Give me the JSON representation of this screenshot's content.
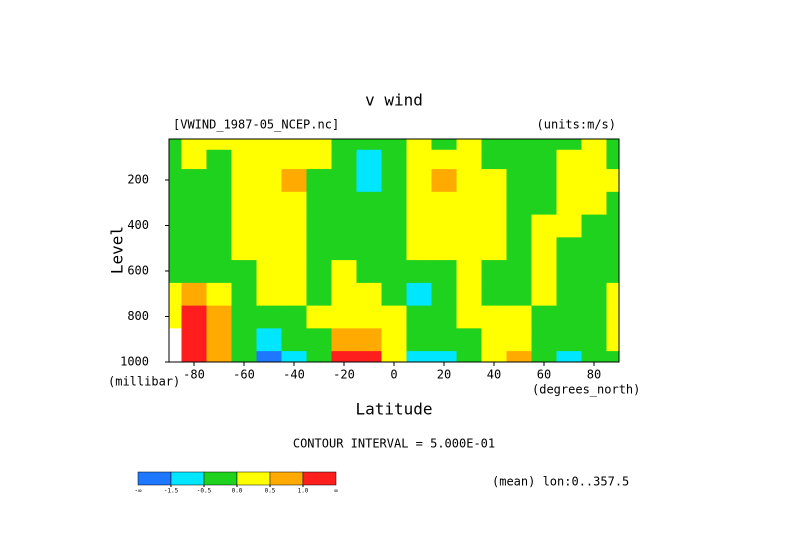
{
  "chart_data": {
    "type": "contour",
    "title": "v wind",
    "source_label": "[VWIND_1987-05_NCEP.nc]",
    "units_label": "(units:m/s)",
    "ylabel": "Level",
    "ylabel_units": "(millibar)",
    "xlabel": "Latitude",
    "xlabel_units": "(degrees_north)",
    "contour_interval": "CONTOUR INTERVAL = 5.000E-01",
    "mean_label": "(mean) lon:0..357.5",
    "x": [
      -90,
      -80,
      -70,
      -60,
      -50,
      -40,
      -30,
      -20,
      -10,
      0,
      10,
      20,
      30,
      40,
      50,
      60,
      70,
      80,
      90
    ],
    "levels": [
      1000,
      900,
      800,
      700,
      600,
      500,
      400,
      300,
      200,
      100,
      30
    ],
    "values": [
      [
        null,
        1.5,
        0.7,
        -0.2,
        -1.6,
        -1.0,
        -0.2,
        1.5,
        1.2,
        0.2,
        -0.8,
        -1.0,
        -0.2,
        0.3,
        0.7,
        -0.3,
        -0.8,
        -0.2,
        -0.3
      ],
      [
        null,
        1.2,
        0.7,
        -0.2,
        -0.7,
        -0.3,
        -0.2,
        0.8,
        0.6,
        0.2,
        -0.2,
        -0.3,
        -0.2,
        0.2,
        0.3,
        -0.2,
        -0.2,
        -0.2,
        0.2
      ],
      [
        0.3,
        1.0,
        0.6,
        -0.2,
        -0.2,
        -0.2,
        0.2,
        0.3,
        0.3,
        0.2,
        -0.2,
        -0.2,
        0.2,
        0.3,
        0.2,
        -0.2,
        -0.2,
        -0.2,
        0.3
      ],
      [
        0.2,
        0.6,
        0.2,
        -0.2,
        0.2,
        0.2,
        -0.2,
        0.3,
        0.2,
        -0.3,
        -0.6,
        -0.2,
        0.2,
        -0.2,
        -0.2,
        0.2,
        -0.2,
        -0.2,
        0.2
      ],
      [
        -0.2,
        -0.2,
        -0.2,
        -0.2,
        0.2,
        0.2,
        -0.2,
        0.2,
        -0.2,
        -0.2,
        -0.2,
        -0.2,
        0.2,
        -0.2,
        -0.2,
        0.2,
        -0.2,
        -0.2,
        -0.2
      ],
      [
        -0.2,
        -0.2,
        -0.2,
        0.2,
        0.2,
        0.2,
        -0.2,
        -0.2,
        -0.2,
        -0.2,
        0.2,
        0.2,
        0.2,
        0.2,
        -0.2,
        0.2,
        -0.2,
        -0.2,
        -0.2
      ],
      [
        -0.2,
        -0.2,
        -0.2,
        0.2,
        0.2,
        0.3,
        -0.2,
        -0.2,
        -0.2,
        -0.2,
        0.2,
        0.2,
        0.2,
        0.2,
        -0.2,
        0.2,
        0.2,
        -0.2,
        -0.2
      ],
      [
        -0.2,
        -0.2,
        -0.2,
        0.2,
        0.3,
        0.3,
        -0.2,
        -0.2,
        -0.2,
        -0.2,
        0.2,
        0.2,
        0.2,
        0.2,
        -0.2,
        -0.2,
        0.2,
        0.2,
        -0.2
      ],
      [
        -0.2,
        -0.2,
        -0.2,
        0.2,
        0.3,
        0.7,
        -0.2,
        -0.2,
        -0.8,
        -0.2,
        0.3,
        0.6,
        0.2,
        0.2,
        -0.2,
        -0.2,
        0.2,
        0.2,
        0.2
      ],
      [
        -0.2,
        0.2,
        -0.2,
        0.2,
        0.2,
        0.2,
        0.2,
        -0.2,
        -0.6,
        -0.2,
        0.3,
        0.2,
        0.2,
        -0.2,
        -0.2,
        -0.2,
        0.2,
        0.2,
        -0.2
      ],
      [
        -0.2,
        0.2,
        0.2,
        0.2,
        0.2,
        0.2,
        0.2,
        -0.2,
        -0.2,
        -0.2,
        0.2,
        -0.2,
        0.2,
        -0.2,
        -0.2,
        -0.2,
        -0.2,
        0.2,
        -0.2
      ]
    ],
    "xlim": [
      -90,
      90
    ],
    "ylim": [
      1000,
      20
    ],
    "xticks": [
      -80,
      -60,
      -40,
      -20,
      0,
      20,
      40,
      60,
      80
    ],
    "yticks": [
      200,
      400,
      600,
      800,
      1000
    ],
    "colorbar_colors": [
      "#1e78ff",
      "#00e6ff",
      "#1ed21e",
      "#ffff00",
      "#ffaa00",
      "#ff1e1e"
    ],
    "colorbar_ends": [
      "-∞",
      "∞"
    ],
    "colorbar_ticks": [
      -1.5,
      -0.5,
      {
        "value": 0,
        "label": "0.0"
      },
      0.5,
      {
        "value": 1,
        "label": "1.0"
      }
    ]
  }
}
